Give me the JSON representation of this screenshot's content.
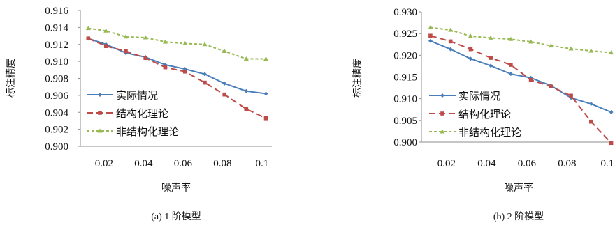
{
  "chart_data": [
    {
      "type": "line",
      "title": "",
      "caption": "(a) 1 阶模型",
      "xlabel": "噪声率",
      "ylabel": "标注精度",
      "x": [
        0.012,
        0.021,
        0.031,
        0.041,
        0.051,
        0.061,
        0.071,
        0.081,
        0.092,
        0.102
      ],
      "xticks": [
        "0.02",
        "0.04",
        "0.06",
        "0.08",
        "0.1"
      ],
      "xtick_values": [
        0.02,
        0.04,
        0.06,
        0.08,
        0.1
      ],
      "xlim": [
        0.008,
        0.105
      ],
      "ylim": [
        0.9,
        0.916
      ],
      "yticks": [
        "0.900",
        "0.902",
        "0.904",
        "0.906",
        "0.908",
        "0.910",
        "0.912",
        "0.914",
        "0.916"
      ],
      "ytick_values": [
        0.9,
        0.902,
        0.904,
        0.906,
        0.908,
        0.91,
        0.912,
        0.914,
        0.916
      ],
      "grid": false,
      "legend_position": "bottom-left",
      "series": [
        {
          "name": "实际情况",
          "color": "#4a7ebb",
          "dash": "solid",
          "marker": "diamond",
          "values": [
            0.9127,
            0.912,
            0.911,
            0.9105,
            0.9096,
            0.9091,
            0.9085,
            0.9074,
            0.9065,
            0.9062
          ]
        },
        {
          "name": "结构化理论",
          "color": "#be4b48",
          "dash": "long-dash",
          "marker": "square",
          "values": [
            0.9127,
            0.9118,
            0.9112,
            0.9104,
            0.9093,
            0.9088,
            0.9075,
            0.9061,
            0.9044,
            0.9033
          ]
        },
        {
          "name": "非结构化理论",
          "color": "#98b954",
          "dash": "short-dash",
          "marker": "triangle",
          "values": [
            0.9139,
            0.9136,
            0.9129,
            0.9128,
            0.9123,
            0.9121,
            0.912,
            0.9112,
            0.9103,
            0.9103
          ]
        }
      ]
    },
    {
      "type": "line",
      "title": "",
      "caption": "(b) 2 阶模型",
      "xlabel": "噪声率",
      "ylabel": "标注精度",
      "x": [
        0.012,
        0.022,
        0.032,
        0.042,
        0.052,
        0.062,
        0.072,
        0.082,
        0.092,
        0.102
      ],
      "xticks": [
        "0.02",
        "0.04",
        "0.06",
        "0.08",
        "0.1"
      ],
      "xtick_values": [
        0.02,
        0.04,
        0.06,
        0.08,
        0.1
      ],
      "xlim": [
        0.0075,
        0.1025
      ],
      "ylim": [
        0.9,
        0.93
      ],
      "yticks": [
        "0.900",
        "0.905",
        "0.910",
        "0.915",
        "0.920",
        "0.925",
        "0.930"
      ],
      "ytick_values": [
        0.9,
        0.905,
        0.91,
        0.915,
        0.92,
        0.925,
        0.93
      ],
      "grid": false,
      "legend_position": "bottom-left",
      "series": [
        {
          "name": "实际情况",
          "color": "#4a7ebb",
          "dash": "solid",
          "marker": "diamond",
          "values": [
            0.9233,
            0.9214,
            0.9192,
            0.9176,
            0.9157,
            0.9148,
            0.913,
            0.9102,
            0.9088,
            0.9069
          ]
        },
        {
          "name": "结构化理论",
          "color": "#be4b48",
          "dash": "long-dash",
          "marker": "square",
          "values": [
            0.9245,
            0.9232,
            0.9214,
            0.9194,
            0.9178,
            0.9143,
            0.9128,
            0.9107,
            0.9047,
            0.8998
          ]
        },
        {
          "name": "非结构化理论",
          "color": "#98b954",
          "dash": "short-dash",
          "marker": "triangle",
          "values": [
            0.9264,
            0.9258,
            0.9244,
            0.924,
            0.9237,
            0.9231,
            0.9222,
            0.9215,
            0.921,
            0.9206
          ]
        }
      ]
    }
  ]
}
